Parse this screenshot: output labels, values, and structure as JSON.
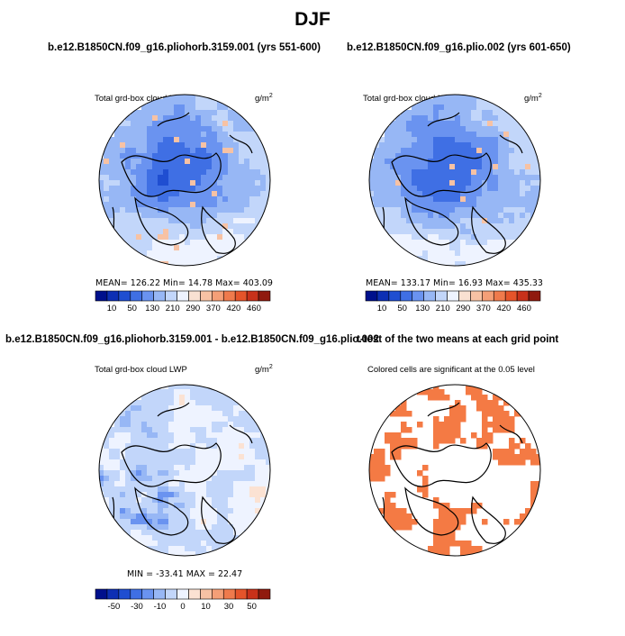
{
  "main_title": "DJF",
  "panels": [
    {
      "title": "b.e12.B1850CN.f09_g16.pliohorb.3159.001 (yrs 551-600)",
      "left_label": "Total grd-box cloud LWP",
      "units_base": "g/m",
      "units_exp": "2",
      "stats": "MEAN= 126.22   Min=  14.78   Max= 403.09"
    },
    {
      "title": "b.e12.B1850CN.f09_g16.plio.002 (yrs 601-650)",
      "left_label": "Total grd-box cloud LWP",
      "units_base": "g/m",
      "units_exp": "2",
      "stats": "MEAN= 133.17   Min=  16.93   Max= 435.33"
    },
    {
      "title": "b.e12.B1850CN.f09_g16.pliohorb.3159.001 - b.e12.B1850CN.f09_g16.plio.002",
      "left_label": "Total grd-box cloud LWP",
      "units_base": "g/m",
      "units_exp": "2",
      "stats": "MIN = -33.41  MAX =  22.47"
    },
    {
      "title": "t-test of the two means at each grid point",
      "subtitle": "Colored cells are significant at the 0.05 level"
    }
  ],
  "chart_data": [
    {
      "type": "heatmap",
      "projection": "north-polar-stereographic",
      "title": "b.e12.B1850CN.f09_g16.pliohorb.3159.001 (yrs 551-600)",
      "variable": "Total grd-box cloud LWP",
      "units": "g/m2",
      "mean": 126.22,
      "min": 14.78,
      "max": 403.09,
      "colorbar_levels": [
        10,
        50,
        130,
        210,
        290,
        370,
        420,
        460
      ],
      "colorbar_tick_labels": [
        "10",
        "50",
        "130",
        "210",
        "290",
        "370",
        "420",
        "460"
      ]
    },
    {
      "type": "heatmap",
      "projection": "north-polar-stereographic",
      "title": "b.e12.B1850CN.f09_g16.plio.002 (yrs 601-650)",
      "variable": "Total grd-box cloud LWP",
      "units": "g/m2",
      "mean": 133.17,
      "min": 16.93,
      "max": 435.33,
      "colorbar_levels": [
        10,
        50,
        130,
        210,
        290,
        370,
        420,
        460
      ],
      "colorbar_tick_labels": [
        "10",
        "50",
        "130",
        "210",
        "290",
        "370",
        "420",
        "460"
      ]
    },
    {
      "type": "heatmap",
      "projection": "north-polar-stereographic",
      "title": "b.e12.B1850CN.f09_g16.pliohorb.3159.001 - b.e12.B1850CN.f09_g16.plio.002",
      "variable": "Total grd-box cloud LWP",
      "units": "g/m2",
      "min": -33.41,
      "max": 22.47,
      "colorbar_levels": [
        -50,
        -30,
        -10,
        0,
        10,
        30,
        50
      ],
      "colorbar_tick_labels": [
        "-50",
        "-30",
        "-10",
        "0",
        "10",
        "30",
        "50"
      ]
    },
    {
      "type": "heatmap",
      "projection": "north-polar-stereographic",
      "title": "t-test of the two means at each grid point",
      "subtitle": "Colored cells are significant at the 0.05 level",
      "significance_level": 0.05
    }
  ],
  "colors": {
    "abs_scale": [
      "#00108c",
      "#0d2fb4",
      "#1f4ed1",
      "#3f6fe4",
      "#6a93f0",
      "#97b7f5",
      "#c2d6fa",
      "#eef3ff",
      "#f9e1d2",
      "#f7c2a4",
      "#f49f77",
      "#ef7a4c",
      "#e5542a",
      "#c8311a",
      "#901a0e"
    ],
    "diff_scale": [
      "#00108c",
      "#0d2fb4",
      "#1f4ed1",
      "#3f6fe4",
      "#6a93f0",
      "#97b7f5",
      "#c2d6fa",
      "#eef3ff",
      "#fbe2d3",
      "#f7c2a4",
      "#f49f77",
      "#ef7a4c",
      "#e5542a",
      "#c8311a",
      "#901a0e"
    ],
    "significant": "#f47a44",
    "coast": "#000000"
  }
}
